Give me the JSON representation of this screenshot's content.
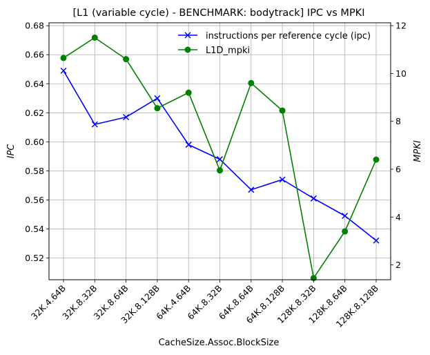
{
  "chart_data": {
    "type": "line",
    "title": "[L1 (variable cycle) - BENCHMARK: bodytrack]  IPC vs MPKI",
    "xlabel": "CacheSize.Assoc.BlockSize",
    "ylabel_left": "IPC",
    "ylabel_right": "MPKI",
    "categories": [
      "32K.4.64B",
      "32K.8.32B",
      "32K.8.64B",
      "32K.8.128B",
      "64K.4.64B",
      "64K.8.32B",
      "64K.8.64B",
      "64K.8.128B",
      "128K.8.32B",
      "128K.8.64B",
      "128K.8.128B"
    ],
    "ylim_left": [
      0.505,
      0.682
    ],
    "ylim_right": [
      1.38,
      12.12
    ],
    "yticks_left": [
      "0.52",
      "0.54",
      "0.56",
      "0.58",
      "0.60",
      "0.62",
      "0.64",
      "0.66",
      "0.68"
    ],
    "yticks_right": [
      "2",
      "4",
      "6",
      "8",
      "10",
      "12"
    ],
    "grid": true,
    "legend_position": "top-right",
    "series": [
      {
        "name": "instructions per reference cycle (ipc)",
        "axis": "left",
        "color": "#0000ff",
        "marker": "x",
        "values": [
          0.649,
          0.612,
          0.617,
          0.63,
          0.598,
          0.588,
          0.567,
          0.574,
          0.561,
          0.549,
          0.532
        ]
      },
      {
        "name": "L1D_mpki",
        "axis": "right",
        "color": "#008000",
        "marker": "o",
        "values": [
          10.65,
          11.5,
          10.6,
          8.55,
          9.2,
          5.95,
          9.6,
          8.45,
          1.45,
          3.4,
          6.4
        ]
      }
    ]
  }
}
